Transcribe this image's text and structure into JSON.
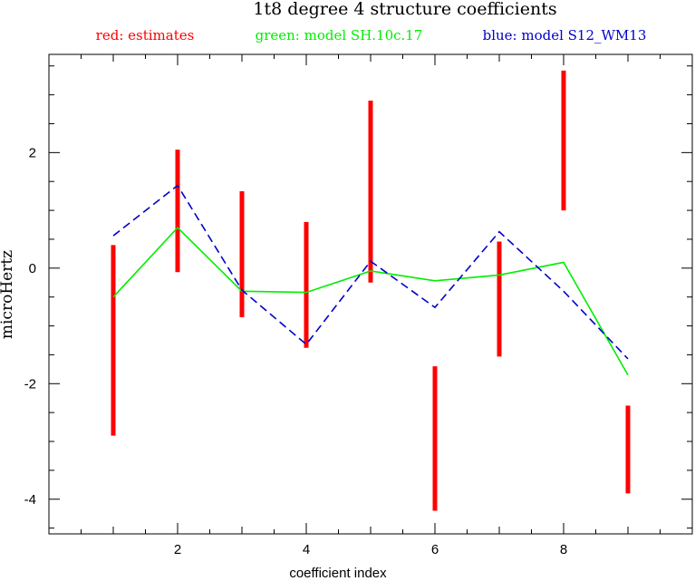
{
  "chart_data": {
    "type": "line",
    "title": "1t8 degree 4 structure coefficients",
    "legend": [
      {
        "text": "red: estimates",
        "color": "#ff0000"
      },
      {
        "text": "green: model SH.10c.17",
        "color": "#00ee00"
      },
      {
        "text": "blue: model S12_WM13",
        "color": "#0000cc"
      }
    ],
    "legend_placement": "top",
    "xlabel": "coefficient index",
    "ylabel": "microHertz",
    "xlim": [
      0,
      10
    ],
    "ylim": [
      -4.6,
      3.7
    ],
    "x_ticks": [
      2,
      4,
      6,
      8
    ],
    "y_ticks": [
      -4,
      -2,
      0,
      2
    ],
    "grid": false,
    "estimates": [
      {
        "x": 1,
        "low": -2.9,
        "high": 0.4
      },
      {
        "x": 2,
        "low": -0.07,
        "high": 2.05
      },
      {
        "x": 3,
        "low": -0.85,
        "high": 1.33
      },
      {
        "x": 4,
        "low": -1.38,
        "high": 0.8
      },
      {
        "x": 5,
        "low": -0.25,
        "high": 2.9
      },
      {
        "x": 6,
        "low": -4.2,
        "high": -1.7
      },
      {
        "x": 7,
        "low": -1.53,
        "high": 0.46
      },
      {
        "x": 8,
        "low": 1.0,
        "high": 3.42
      },
      {
        "x": 9,
        "low": -3.9,
        "high": -2.38
      }
    ],
    "series": [
      {
        "name": "model SH.10c.17",
        "color": "#00ee00",
        "dash": false,
        "x": [
          1,
          2,
          3,
          4,
          5,
          6,
          7,
          8,
          9
        ],
        "values": [
          -0.5,
          0.7,
          -0.4,
          -0.42,
          -0.05,
          -0.22,
          -0.12,
          0.1,
          -1.85
        ]
      },
      {
        "name": "model S12_WM13",
        "color": "#0000cc",
        "dash": true,
        "x": [
          1,
          2,
          3,
          4,
          5,
          6,
          7,
          8,
          9
        ],
        "values": [
          0.56,
          1.43,
          -0.38,
          -1.32,
          0.12,
          -0.68,
          0.63,
          -0.4,
          -1.57
        ]
      }
    ]
  }
}
